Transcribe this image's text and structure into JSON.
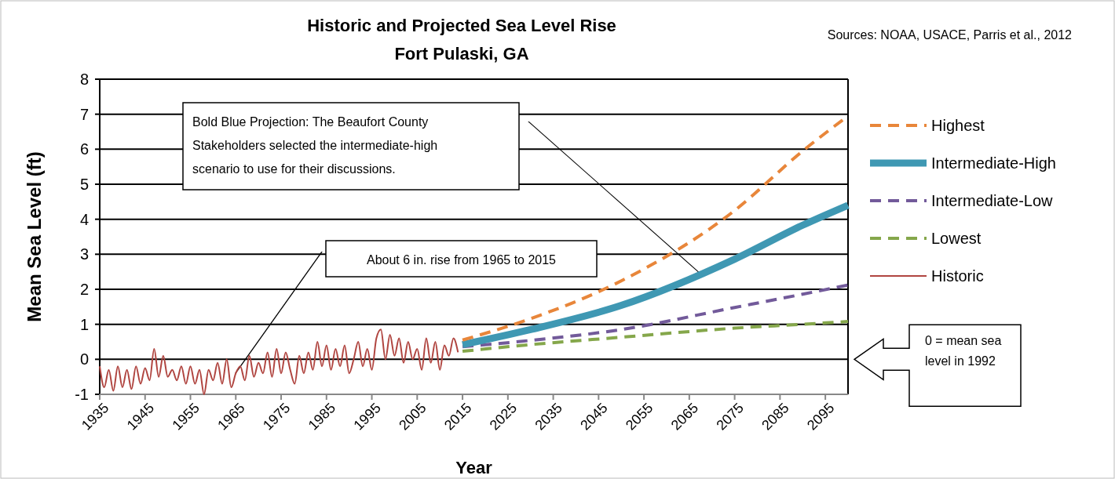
{
  "chart_data": {
    "type": "line",
    "title": "Historic and Projected Sea Level Rise",
    "subtitle": "Fort Pulaski, GA",
    "xlabel": "Year",
    "ylabel": "Mean Sea Level (ft)",
    "xlim": [
      1935,
      2100
    ],
    "xticks": [
      1935,
      1945,
      1955,
      1965,
      1975,
      1985,
      1995,
      2005,
      2015,
      2025,
      2035,
      2045,
      2055,
      2065,
      2075,
      2085,
      2095
    ],
    "ylim": [
      -1,
      8
    ],
    "yticks": [
      -1,
      0,
      1,
      2,
      3,
      4,
      5,
      6,
      7,
      8
    ],
    "grid": "y",
    "legend": "right",
    "series": [
      {
        "name": "Highest",
        "color": "#e8863a",
        "line_style": "dashed",
        "x": [
          2015,
          2030,
          2050,
          2075,
          2090,
          2100
        ],
        "values": [
          0.55,
          1.16,
          2.24,
          4.25,
          5.95,
          6.95
        ]
      },
      {
        "name": "Intermediate-High",
        "color": "#3f98b3",
        "line_style": "solid",
        "x": [
          2015,
          2030,
          2050,
          2075,
          2090,
          2100
        ],
        "values": [
          0.42,
          0.85,
          1.54,
          2.86,
          3.83,
          4.4
        ]
      },
      {
        "name": "Intermediate-Low",
        "color": "#725a9a",
        "line_style": "dashed",
        "x": [
          2015,
          2030,
          2050,
          2075,
          2090,
          2100
        ],
        "values": [
          0.36,
          0.54,
          0.85,
          1.48,
          1.86,
          2.12
        ]
      },
      {
        "name": "Lowest",
        "color": "#85a74b",
        "line_style": "dashed",
        "x": [
          2015,
          2030,
          2050,
          2075,
          2090,
          2100
        ],
        "values": [
          0.23,
          0.42,
          0.63,
          0.89,
          1.0,
          1.08
        ]
      },
      {
        "name": "Historic",
        "color": "#b04540",
        "line_style": "solid",
        "x": [
          1935,
          1936,
          1937,
          1938,
          1939,
          1940,
          1941,
          1942,
          1943,
          1944,
          1945,
          1946,
          1947,
          1948,
          1949,
          1950,
          1951,
          1952,
          1953,
          1954,
          1955,
          1956,
          1957,
          1958,
          1959,
          1960,
          1961,
          1962,
          1963,
          1964,
          1965,
          1966,
          1967,
          1968,
          1969,
          1970,
          1971,
          1972,
          1973,
          1974,
          1975,
          1976,
          1977,
          1978,
          1979,
          1980,
          1981,
          1982,
          1983,
          1984,
          1985,
          1986,
          1987,
          1988,
          1989,
          1990,
          1991,
          1992,
          1993,
          1994,
          1995,
          1996,
          1997,
          1998,
          1999,
          2000,
          2001,
          2002,
          2003,
          2004,
          2005,
          2006,
          2007,
          2008,
          2009,
          2010,
          2011,
          2012,
          2013,
          2014
        ],
        "values": [
          -0.2,
          -0.8,
          -0.3,
          -0.9,
          -0.2,
          -0.8,
          -0.3,
          -0.85,
          -0.2,
          -0.7,
          -0.25,
          -0.6,
          0.3,
          -0.5,
          0.1,
          -0.5,
          -0.3,
          -0.6,
          -0.2,
          -0.7,
          -0.2,
          -0.7,
          -0.3,
          -1.0,
          -0.3,
          -0.6,
          -0.1,
          -0.7,
          0.0,
          -0.8,
          -0.4,
          -0.2,
          -0.6,
          0.1,
          -0.5,
          -0.1,
          -0.4,
          0.2,
          -0.5,
          0.3,
          -0.4,
          0.2,
          -0.3,
          -0.7,
          0.1,
          -0.4,
          0.2,
          -0.3,
          0.5,
          -0.2,
          0.4,
          -0.3,
          0.3,
          -0.2,
          0.4,
          -0.4,
          0.0,
          0.5,
          -0.2,
          0.3,
          -0.3,
          0.6,
          0.85,
          0.0,
          0.7,
          0.1,
          0.6,
          -0.1,
          0.5,
          0.0,
          0.3,
          -0.3,
          0.6,
          -0.1,
          0.5,
          -0.3,
          0.4,
          0.1,
          0.6,
          0.2
        ]
      }
    ],
    "annotations": [
      "Bold Blue Projection: The Beaufort County Stakeholders selected the intermediate-high scenario to use for their discussions.",
      "About 6 in. rise from 1965 to 2015",
      "0 = mean sea level in 1992",
      "Sources: NOAA, USACE, Parris et al., 2012"
    ]
  }
}
